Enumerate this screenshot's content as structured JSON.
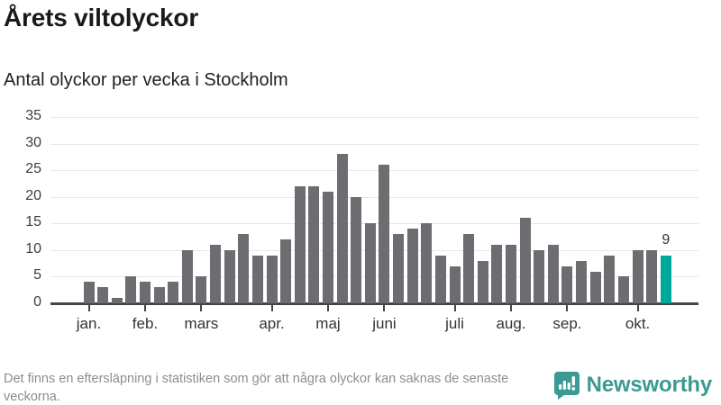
{
  "header": {
    "title": "Årets viltolyckor",
    "subtitle": "Antal olyckor per vecka i Stockholm"
  },
  "chart_data": {
    "type": "bar",
    "title": "Årets viltolyckor",
    "subtitle": "Antal olyckor per vecka i Stockholm",
    "x_unit": "vecka (week number)",
    "weeks": [
      1,
      2,
      3,
      4,
      5,
      6,
      7,
      8,
      9,
      10,
      11,
      12,
      13,
      14,
      15,
      16,
      17,
      18,
      19,
      20,
      21,
      22,
      23,
      24,
      25,
      26,
      27,
      28,
      29,
      30,
      31,
      32,
      33,
      34,
      35,
      36,
      37,
      38,
      39,
      40,
      41,
      42
    ],
    "values": [
      4,
      3,
      1,
      5,
      4,
      3,
      4,
      10,
      5,
      11,
      10,
      13,
      9,
      9,
      12,
      22,
      22,
      21,
      28,
      20,
      15,
      26,
      13,
      14,
      15,
      9,
      7,
      13,
      8,
      11,
      11,
      16,
      10,
      11,
      7,
      8,
      6,
      9,
      5,
      10,
      10,
      9
    ],
    "highlight_last_bar": true,
    "last_bar_value_label": "9",
    "ylim": [
      0,
      35
    ],
    "y_ticks": [
      0,
      5,
      10,
      15,
      20,
      25,
      30,
      35
    ],
    "grid": "horizontal only",
    "legend": "none",
    "month_ticks": [
      {
        "label": "jan.",
        "week": 1
      },
      {
        "label": "feb.",
        "week": 5
      },
      {
        "label": "mars",
        "week": 9
      },
      {
        "label": "apr.",
        "week": 14
      },
      {
        "label": "maj",
        "week": 18
      },
      {
        "label": "juni",
        "week": 22
      },
      {
        "label": "juli",
        "week": 27
      },
      {
        "label": "aug.",
        "week": 31
      },
      {
        "label": "sep.",
        "week": 35
      },
      {
        "label": "okt.",
        "week": 40
      }
    ],
    "colors": {
      "bar": "#6d6d71",
      "highlight": "#00a79b",
      "gridline": "#e7e7e7",
      "axis": "#454545",
      "tick_text": "#3d3d3d"
    }
  },
  "footer": {
    "note": "Det finns en eftersläpning i statistiken som gör att några olyckor kan saknas de senaste veckorna."
  },
  "brand": {
    "name": "Newsworthy",
    "icon": "newsworthy-chart-bubble-icon",
    "color": "#3b9a92"
  }
}
